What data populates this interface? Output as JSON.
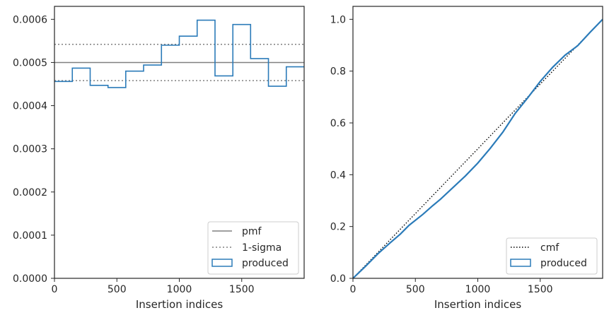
{
  "colors": {
    "produced": "#2b7bb9",
    "pmf": "#808080",
    "sigma": "#808080",
    "cmf": "#000000",
    "axis": "#262626"
  },
  "chart_data": [
    {
      "type": "step",
      "xlabel": "Insertion indices",
      "ylabel": "",
      "xlim": [
        0,
        2000
      ],
      "ylim": [
        0,
        0.00063
      ],
      "x_ticks": [
        0,
        500,
        1000,
        1500
      ],
      "x_tick_labels": [
        "0",
        "500",
        "1000",
        "1500"
      ],
      "y_ticks": [
        0,
        0.0001,
        0.0002,
        0.0003,
        0.0004,
        0.0005,
        0.0006
      ],
      "y_tick_labels": [
        "0.0000",
        "0.0001",
        "0.0002",
        "0.0003",
        "0.0004",
        "0.0005",
        "0.0006"
      ],
      "legend_position": "lower right",
      "legend": [
        "pmf",
        "1-sigma",
        "produced"
      ],
      "pmf": 0.0005,
      "sigma_band": [
        0.000458,
        0.000542
      ],
      "bin_edges": [
        0,
        143,
        286,
        429,
        571,
        714,
        857,
        1000,
        1143,
        1286,
        1429,
        1571,
        1714,
        1857,
        2000
      ],
      "produced": [
        0.000456,
        0.000487,
        0.000447,
        0.000442,
        0.00048,
        0.000494,
        0.00054,
        0.000561,
        0.000598,
        0.000469,
        0.000588,
        0.000509,
        0.000445,
        0.00049
      ]
    },
    {
      "type": "line",
      "xlabel": "Insertion indices",
      "ylabel": "",
      "xlim": [
        0,
        2000
      ],
      "ylim": [
        0,
        1.05
      ],
      "x_ticks": [
        0,
        500,
        1000,
        1500
      ],
      "x_tick_labels": [
        "0",
        "500",
        "1000",
        "1500"
      ],
      "y_ticks": [
        0,
        0.2,
        0.4,
        0.6,
        0.8,
        1.0
      ],
      "y_tick_labels": [
        "0.0",
        "0.2",
        "0.4",
        "0.6",
        "0.8",
        "1.0"
      ],
      "legend_position": "lower right",
      "legend": [
        "cmf",
        "produced"
      ],
      "cmf": {
        "x": [
          0,
          2000
        ],
        "y": [
          0,
          1.0
        ]
      },
      "produced": {
        "x": [
          0,
          100,
          200,
          300,
          380,
          450,
          560,
          640,
          700,
          800,
          900,
          1000,
          1100,
          1200,
          1300,
          1400,
          1500,
          1600,
          1700,
          1800,
          1900,
          2000
        ],
        "y": [
          0,
          0.046,
          0.095,
          0.138,
          0.171,
          0.205,
          0.247,
          0.281,
          0.305,
          0.35,
          0.395,
          0.445,
          0.502,
          0.564,
          0.637,
          0.697,
          0.76,
          0.815,
          0.862,
          0.898,
          0.95,
          1.0
        ]
      }
    }
  ]
}
